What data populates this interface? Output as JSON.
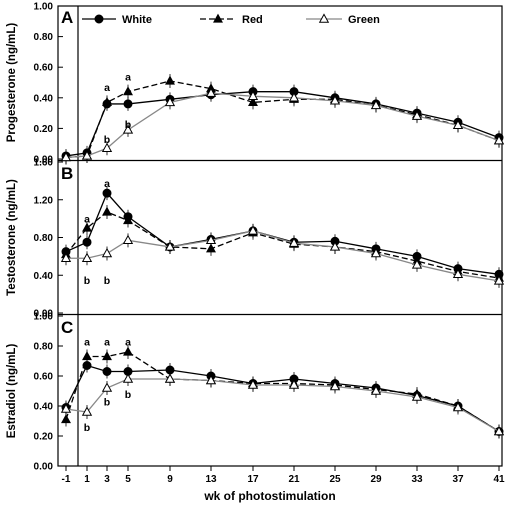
{
  "chart_data": [
    {
      "type": "line",
      "panel_label": "A",
      "ylabel": "Progesterone (ng/mL)",
      "ylim": [
        0,
        1.0
      ],
      "yticks": [
        "0.00",
        "0.20",
        "0.40",
        "0.60",
        "0.80",
        "1.00"
      ],
      "x": [
        -1,
        1,
        3,
        5,
        9,
        13,
        17,
        21,
        25,
        29,
        33,
        37,
        41
      ],
      "series": [
        {
          "name": "White",
          "values": [
            0.02,
            0.04,
            0.36,
            0.36,
            0.39,
            0.42,
            0.44,
            0.44,
            0.4,
            0.36,
            0.3,
            0.24,
            0.14
          ]
        },
        {
          "name": "Red",
          "values": [
            0.01,
            0.02,
            0.37,
            0.44,
            0.51,
            0.46,
            0.37,
            0.39,
            0.39,
            0.35,
            0.29,
            0.22,
            0.12
          ]
        },
        {
          "name": "Green",
          "values": [
            0.01,
            0.02,
            0.07,
            0.19,
            0.37,
            0.43,
            0.41,
            0.4,
            0.38,
            0.35,
            0.28,
            0.22,
            0.12
          ]
        }
      ],
      "annotations": [
        {
          "text": "a",
          "x": 3,
          "y": 0.47
        },
        {
          "text": "a",
          "x": 5,
          "y": 0.54
        },
        {
          "text": "b",
          "x": 3,
          "y": 0.13
        },
        {
          "text": "b",
          "x": 5,
          "y": 0.23
        }
      ]
    },
    {
      "type": "line",
      "panel_label": "B",
      "ylabel": "Testosterone (ng/mL)",
      "ylim": [
        0,
        1.6
      ],
      "yticks": [
        "0.00",
        "0.40",
        "0.80",
        "1.20",
        "1.60"
      ],
      "x": [
        -1,
        1,
        3,
        5,
        9,
        13,
        17,
        21,
        25,
        29,
        33,
        37,
        41
      ],
      "series": [
        {
          "name": "White",
          "values": [
            0.65,
            0.75,
            1.27,
            1.02,
            0.7,
            0.78,
            0.87,
            0.75,
            0.76,
            0.68,
            0.6,
            0.47,
            0.41
          ]
        },
        {
          "name": "Red",
          "values": [
            0.62,
            0.9,
            1.07,
            0.98,
            0.7,
            0.68,
            0.85,
            0.73,
            0.7,
            0.65,
            0.55,
            0.44,
            0.37
          ]
        },
        {
          "name": "Green",
          "values": [
            0.58,
            0.58,
            0.63,
            0.77,
            0.7,
            0.77,
            0.87,
            0.74,
            0.7,
            0.63,
            0.51,
            0.41,
            0.34
          ]
        }
      ],
      "annotations": [
        {
          "text": "a",
          "x": 1,
          "y": 1.0
        },
        {
          "text": "a",
          "x": 3,
          "y": 1.38
        },
        {
          "text": "b",
          "x": 1,
          "y": 0.35
        },
        {
          "text": "b",
          "x": 3,
          "y": 0.35
        }
      ]
    },
    {
      "type": "line",
      "panel_label": "C",
      "ylabel": "Estradiol (ng/mL)",
      "ylim": [
        0,
        1.0
      ],
      "yticks": [
        "0.00",
        "0.20",
        "0.40",
        "0.60",
        "0.80",
        "1.00"
      ],
      "x": [
        -1,
        1,
        3,
        5,
        9,
        13,
        17,
        21,
        25,
        29,
        33,
        37,
        41
      ],
      "series": [
        {
          "name": "White",
          "values": [
            0.39,
            0.67,
            0.63,
            0.63,
            0.64,
            0.6,
            0.55,
            0.58,
            0.55,
            0.52,
            0.47,
            0.4,
            0.23
          ]
        },
        {
          "name": "Red",
          "values": [
            0.31,
            0.73,
            0.73,
            0.76,
            0.58,
            0.57,
            0.55,
            0.55,
            0.54,
            0.51,
            0.48,
            0.4,
            0.23
          ]
        },
        {
          "name": "Green",
          "values": [
            0.38,
            0.36,
            0.52,
            0.58,
            0.58,
            0.57,
            0.54,
            0.54,
            0.53,
            0.5,
            0.46,
            0.39,
            0.23
          ]
        }
      ],
      "annotations": [
        {
          "text": "a",
          "x": 1,
          "y": 0.83
        },
        {
          "text": "a",
          "x": 3,
          "y": 0.83
        },
        {
          "text": "a",
          "x": 5,
          "y": 0.83
        },
        {
          "text": "b",
          "x": 1,
          "y": 0.26
        },
        {
          "text": "b",
          "x": 3,
          "y": 0.43
        },
        {
          "text": "b",
          "x": 5,
          "y": 0.48
        }
      ]
    }
  ],
  "x_axis": {
    "label": "wk of photostimulation",
    "ticks": [
      "-1",
      "1",
      "3",
      "5",
      "9",
      "13",
      "17",
      "21",
      "25",
      "29",
      "33",
      "37",
      "41"
    ],
    "tick_values": [
      -1,
      1,
      3,
      5,
      9,
      13,
      17,
      21,
      25,
      29,
      33,
      37,
      41
    ]
  },
  "legend": {
    "placement": "top",
    "items": [
      {
        "name": "White",
        "marker": "filled-circle",
        "line": "solid"
      },
      {
        "name": "Red",
        "marker": "filled-triangle",
        "line": "dashed"
      },
      {
        "name": "Green",
        "marker": "open-triangle",
        "line": "solid-gray"
      }
    ]
  },
  "colors": {
    "ink": "#000000",
    "green_line": "#888888",
    "background": "#ffffff"
  }
}
